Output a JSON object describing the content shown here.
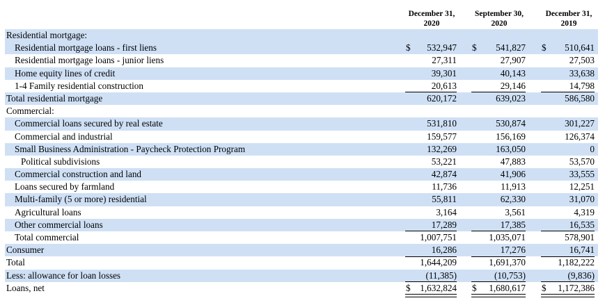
{
  "header": {
    "col1": [
      "December 31,",
      "2020"
    ],
    "col2": [
      "September 30,",
      "2020"
    ],
    "col3": [
      "December 31,",
      "2019"
    ]
  },
  "currency_symbol": "$",
  "rows": [
    {
      "label": "Residential mortgage:",
      "indent": 0,
      "values": [
        "",
        "",
        ""
      ],
      "shade": true
    },
    {
      "label": "Residential mortgage loans - first liens",
      "indent": 1,
      "values": [
        "532,947",
        "541,827",
        "510,641"
      ],
      "dollar": true,
      "shade": true
    },
    {
      "label": "Residential mortgage loans - junior liens",
      "indent": 1,
      "values": [
        "27,311",
        "27,907",
        "27,503"
      ],
      "shade": false
    },
    {
      "label": "Home equity lines of credit",
      "indent": 1,
      "values": [
        "39,301",
        "40,143",
        "33,638"
      ],
      "shade": true
    },
    {
      "label": "1-4 Family residential construction",
      "indent": 1,
      "values": [
        "20,613",
        "29,146",
        "14,798"
      ],
      "shade": false,
      "underline": true
    },
    {
      "label": "Total residential mortgage",
      "indent": 0,
      "values": [
        "620,172",
        "639,023",
        "586,580"
      ],
      "shade": true
    },
    {
      "label": "Commercial:",
      "indent": 0,
      "values": [
        "",
        "",
        ""
      ],
      "shade": false
    },
    {
      "label": "Commercial loans secured by real estate",
      "indent": 1,
      "values": [
        "531,810",
        "530,874",
        "301,227"
      ],
      "shade": true
    },
    {
      "label": "Commercial and industrial",
      "indent": 1,
      "values": [
        "159,577",
        "156,169",
        "126,374"
      ],
      "shade": false
    },
    {
      "label": "Small Business Administration - Paycheck Protection Program",
      "indent": 1,
      "values": [
        "132,269",
        "163,050",
        "0"
      ],
      "shade": true
    },
    {
      "label": "Political subdivisions",
      "indent": 2,
      "values": [
        "53,221",
        "47,883",
        "53,570"
      ],
      "shade": false
    },
    {
      "label": "Commercial construction and land",
      "indent": 1,
      "values": [
        "42,874",
        "41,906",
        "33,555"
      ],
      "shade": true
    },
    {
      "label": "Loans secured by farmland",
      "indent": 1,
      "values": [
        "11,736",
        "11,913",
        "12,251"
      ],
      "shade": false
    },
    {
      "label": "Multi-family (5 or more) residential",
      "indent": 1,
      "values": [
        "55,811",
        "62,330",
        "31,070"
      ],
      "shade": true
    },
    {
      "label": "Agricultural loans",
      "indent": 1,
      "values": [
        "3,164",
        "3,561",
        "4,319"
      ],
      "shade": false
    },
    {
      "label": "Other commercial loans",
      "indent": 1,
      "values": [
        "17,289",
        "17,385",
        "16,535"
      ],
      "shade": true,
      "underline": true
    },
    {
      "label": "Total commercial",
      "indent": 1,
      "values": [
        "1,007,751",
        "1,035,071",
        "578,901"
      ],
      "shade": false,
      "underline": true
    },
    {
      "label": "Consumer",
      "indent": 0,
      "values": [
        "16,286",
        "17,276",
        "16,741"
      ],
      "shade": true,
      "underline": true
    },
    {
      "label": "Total",
      "indent": 0,
      "values": [
        "1,644,209",
        "1,691,370",
        "1,182,222"
      ],
      "shade": false
    },
    {
      "label": "Less: allowance for loan losses",
      "indent": 0,
      "values": [
        "(11,385)",
        "(10,753)",
        "(9,836)"
      ],
      "shade": true,
      "underline": true
    },
    {
      "label": "Loans, net",
      "indent": 0,
      "values": [
        "1,632,824",
        "1,680,617",
        "1,172,386"
      ],
      "dollar": true,
      "shade": false,
      "double": true
    }
  ]
}
